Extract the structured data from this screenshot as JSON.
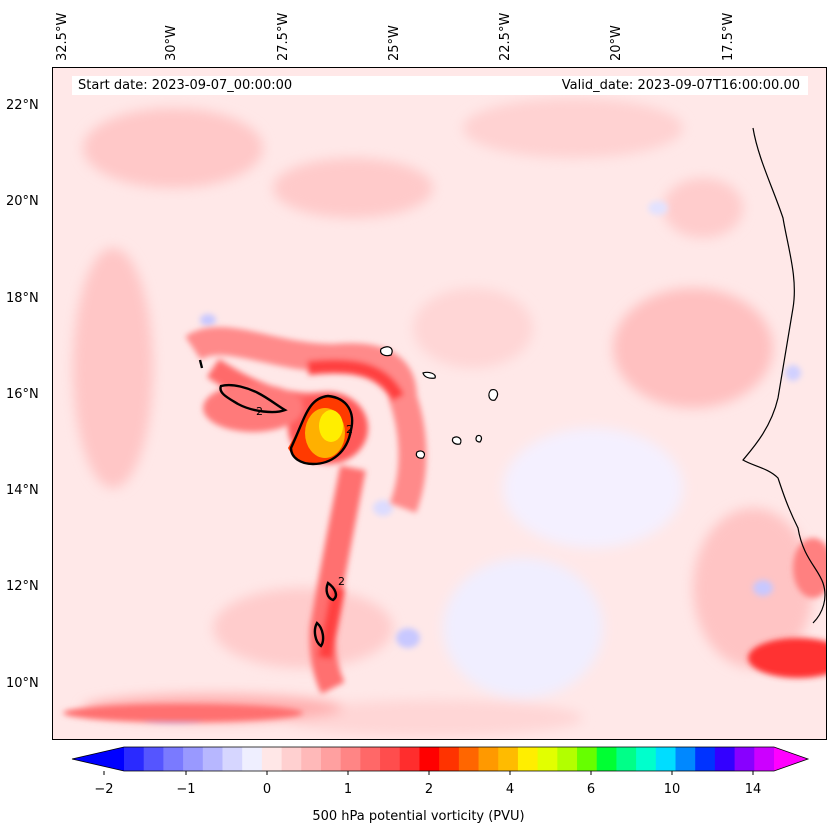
{
  "map": {
    "start_date": "Start date: 2023-09-07_00:00:00",
    "valid_date": "Valid_date: 2023-09-07T16:00:00.00",
    "longitude_labels": [
      "32.5°W",
      "30°W",
      "27.5°W",
      "25°W",
      "22.5°W",
      "20°W",
      "17.5°W"
    ],
    "latitude_labels": [
      "22°N",
      "20°N",
      "18°N",
      "16°N",
      "14°N",
      "12°N",
      "10°N"
    ],
    "contour_label": "2"
  },
  "colorbar": {
    "title": "500 hPa potential vorticity (PVU)",
    "tick_labels": [
      "−2",
      "−1",
      "0",
      "1",
      "2",
      "4",
      "6",
      "10",
      "14"
    ],
    "colors": [
      "#0000ff",
      "#2a2aff",
      "#5555ff",
      "#7a7aff",
      "#9999ff",
      "#b7b7ff",
      "#d6d6ff",
      "#efefff",
      "#ffe7e7",
      "#ffd0d0",
      "#ffb9b9",
      "#ffa0a0",
      "#ff8585",
      "#ff6868",
      "#ff4d4d",
      "#ff2d2d",
      "#ff0000",
      "#ff3300",
      "#ff6600",
      "#ff9900",
      "#ffbb00",
      "#ffee00",
      "#e2ff00",
      "#b2ff00",
      "#66ff00",
      "#00ff33",
      "#00ff88",
      "#00ffcc",
      "#00ddff",
      "#0088ff",
      "#0033ff",
      "#3300ff",
      "#8800ff",
      "#cc00ff",
      "#ff00ff"
    ]
  }
}
